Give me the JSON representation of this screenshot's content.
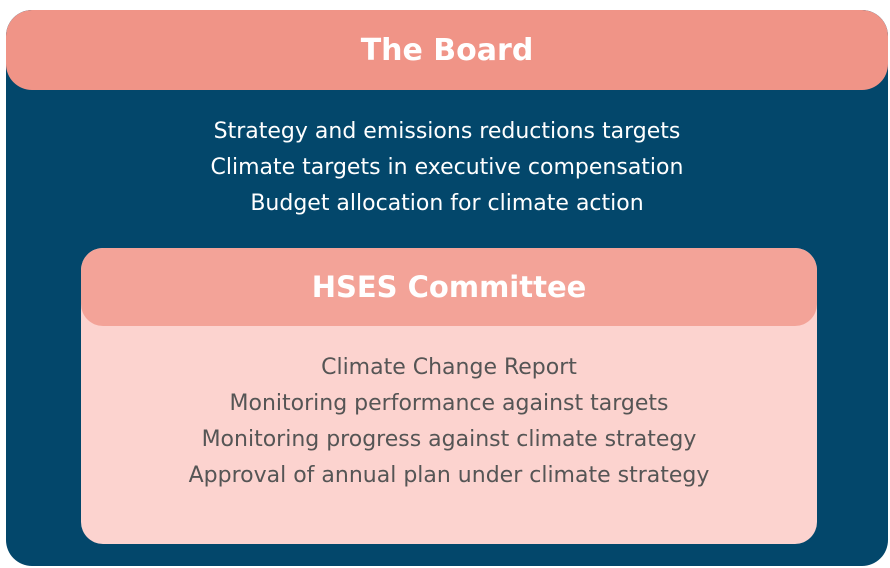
{
  "board": {
    "title": "The Board",
    "items": [
      "Strategy and emissions reductions targets",
      "Climate targets in executive compensation",
      "Budget allocation for climate action"
    ]
  },
  "committee": {
    "title": "HSES Committee",
    "items": [
      "Climate Change Report",
      "Monitoring performance against targets",
      "Monitoring progress against climate strategy",
      "Approval of annual plan under climate strategy"
    ]
  }
}
